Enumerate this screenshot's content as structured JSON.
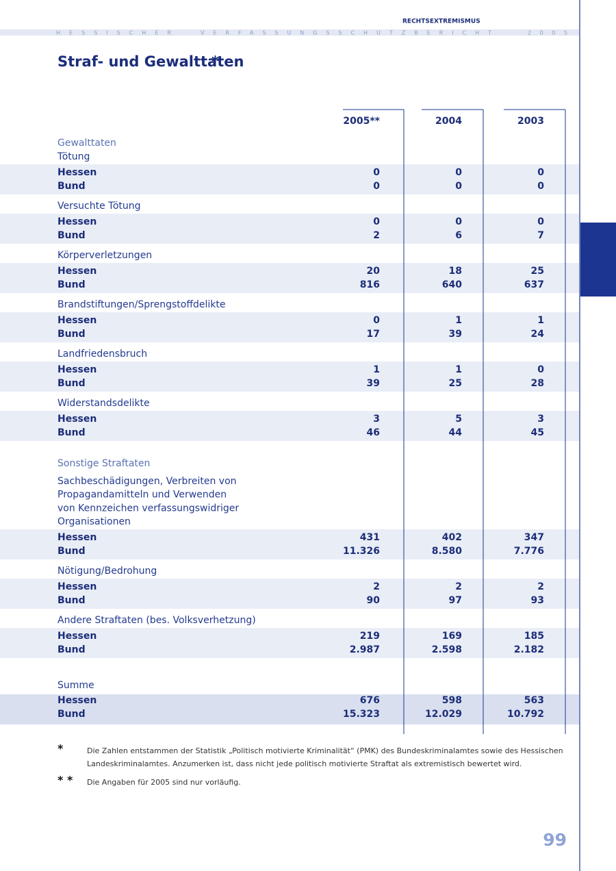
{
  "header": {
    "section": "RECHTSEXTREMISMUS",
    "running": [
      "HESSISCHER",
      "VERFASSUNGSSCHUTZBERICHT",
      "2005"
    ]
  },
  "title": "Straf- und Gewalttaten",
  "title_mark": "*",
  "table": {
    "columns": [
      "2005**",
      "2004",
      "2003"
    ],
    "sections": [
      {
        "heading": "Gewalttaten",
        "groups": [
          {
            "label": [
              "Tötung"
            ],
            "rows": [
              {
                "label": "Hessen",
                "values": [
                  "0",
                  "0",
                  "0"
                ]
              },
              {
                "label": "Bund",
                "values": [
                  "0",
                  "0",
                  "0"
                ]
              }
            ]
          },
          {
            "label": [
              "Versuchte Tötung"
            ],
            "rows": [
              {
                "label": "Hessen",
                "values": [
                  "0",
                  "0",
                  "0"
                ]
              },
              {
                "label": "Bund",
                "values": [
                  "2",
                  "6",
                  "7"
                ]
              }
            ]
          },
          {
            "label": [
              "Körperverletzungen"
            ],
            "rows": [
              {
                "label": "Hessen",
                "values": [
                  "20",
                  "18",
                  "25"
                ]
              },
              {
                "label": "Bund",
                "values": [
                  "816",
                  "640",
                  "637"
                ]
              }
            ]
          },
          {
            "label": [
              "Brandstiftungen/Sprengstoffdelikte"
            ],
            "rows": [
              {
                "label": "Hessen",
                "values": [
                  "0",
                  "1",
                  "1"
                ]
              },
              {
                "label": "Bund",
                "values": [
                  "17",
                  "39",
                  "24"
                ]
              }
            ]
          },
          {
            "label": [
              "Landfriedensbruch"
            ],
            "rows": [
              {
                "label": "Hessen",
                "values": [
                  "1",
                  "1",
                  "0"
                ]
              },
              {
                "label": "Bund",
                "values": [
                  "39",
                  "25",
                  "28"
                ]
              }
            ]
          },
          {
            "label": [
              "Widerstandsdelikte"
            ],
            "rows": [
              {
                "label": "Hessen",
                "values": [
                  "3",
                  "5",
                  "3"
                ]
              },
              {
                "label": "Bund",
                "values": [
                  "46",
                  "44",
                  "45"
                ]
              }
            ]
          }
        ]
      },
      {
        "heading": "Sonstige Straftaten",
        "groups": [
          {
            "label": [
              "Sachbeschädigungen, Verbreiten von",
              "Propagandamitteln und Verwenden",
              "von Kennzeichen verfassungswidriger",
              "Organisationen"
            ],
            "rows": [
              {
                "label": "Hessen",
                "values": [
                  "431",
                  "402",
                  "347"
                ]
              },
              {
                "label": "Bund",
                "values": [
                  "11.326",
                  "8.580",
                  "7.776"
                ]
              }
            ]
          },
          {
            "label": [
              "Nötigung/Bedrohung"
            ],
            "rows": [
              {
                "label": "Hessen",
                "values": [
                  "2",
                  "2",
                  "2"
                ]
              },
              {
                "label": "Bund",
                "values": [
                  "90",
                  "97",
                  "93"
                ]
              }
            ]
          },
          {
            "label": [
              "Andere Straftaten (bes. Volksverhetzung)"
            ],
            "rows": [
              {
                "label": "Hessen",
                "values": [
                  "219",
                  "169",
                  "185"
                ]
              },
              {
                "label": "Bund",
                "values": [
                  "2.987",
                  "2.598",
                  "2.182"
                ]
              }
            ]
          }
        ]
      }
    ],
    "total": {
      "label": [
        "Summe"
      ],
      "rows": [
        {
          "label": "Hessen",
          "values": [
            "676",
            "598",
            "563"
          ]
        },
        {
          "label": "Bund",
          "values": [
            "15.323",
            "12.029",
            "10.792"
          ]
        }
      ]
    }
  },
  "footnotes": [
    {
      "mark": "*",
      "text": [
        "Die Zahlen entstammen der Statistik „Politisch motivierte Kriminalität“ (PMK) des Bundeskriminalamtes sowie des Hessischen",
        "Landeskriminalamtes. Anzumerken ist, dass nicht jede politisch motivierte Straftat als extremistisch bewertet wird."
      ]
    },
    {
      "mark": "* *",
      "text": [
        "Die Angaben für  2005 sind nur vorläufig."
      ]
    }
  ],
  "page_number": "99"
}
